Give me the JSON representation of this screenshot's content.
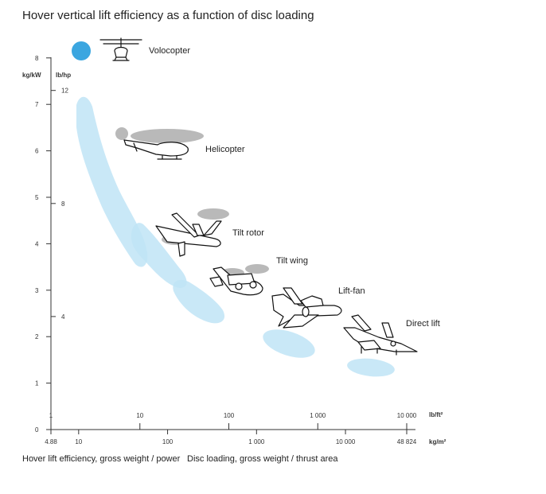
{
  "chart_data": {
    "type": "scatter",
    "title": "Hover vertical lift efficiency as a function of disc loading",
    "ylabel": "Hover lift efficiency, gross weight / power",
    "xlabel": "Disc loading, gross weight / thrust area",
    "y_axis": {
      "unit_primary": "kg/kW",
      "unit_secondary": "lb/hp",
      "ticks_primary": [
        "0",
        "1",
        "2",
        "3",
        "4",
        "5",
        "6",
        "7",
        "8"
      ],
      "ticks_secondary": [
        "4",
        "8",
        "12"
      ],
      "range": [
        0,
        8
      ]
    },
    "x_axis": {
      "scale": "log",
      "unit_top": "lb/ft²",
      "unit_bottom": "kg/m²",
      "ticks_top": [
        "1",
        "10",
        "100",
        "1 000",
        "10 000"
      ],
      "ticks_bottom": [
        "4.88",
        "10",
        "100",
        "1 000",
        "10 000",
        "48 824"
      ],
      "range_kg_m2": [
        4.88,
        48824
      ]
    },
    "series": [
      {
        "name": "Volocopter",
        "color": "#3ba6e0",
        "x_kg_m2": 10,
        "y_kg_kw": 8.1
      },
      {
        "name": "Helicopter",
        "color": "#bfe4f6",
        "x_kg_m2": [
          8,
          80
        ],
        "y_kg_kw": [
          3.5,
          7.0
        ]
      },
      {
        "name": "Tilt rotor",
        "color": "#bfe4f6",
        "x_kg_m2": [
          45,
          160
        ],
        "y_kg_kw": [
          3.0,
          4.3
        ]
      },
      {
        "name": "Tilt wing",
        "color": "#bfe4f6",
        "x_kg_m2": [
          140,
          800
        ],
        "y_kg_kw": [
          2.3,
          3.2
        ]
      },
      {
        "name": "Lift-fan",
        "color": "#bfe4f6",
        "x_kg_m2": [
          2500,
          8000
        ],
        "y_kg_kw": [
          1.5,
          2.1
        ]
      },
      {
        "name": "Direct lift",
        "color": "#bfe4f6",
        "x_kg_m2": [
          8000,
          35000
        ],
        "y_kg_kw": [
          1.0,
          1.3
        ]
      }
    ]
  }
}
